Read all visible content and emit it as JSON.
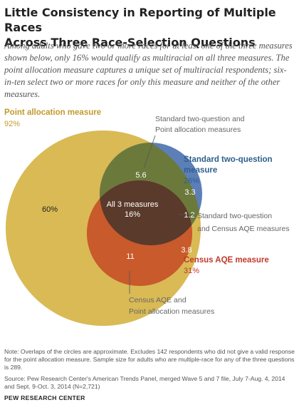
{
  "header": {
    "title_line1": "Little Consistency in Reporting of Multiple Races",
    "title_line2": "Across Three Race-Selection Questions",
    "subtitle": "Among adults who gave two or more races for at least one of the three measures shown below, only 16% would qualify as multiracial on all three measures. The point allocation measure captures a unique set of multiracial respondents; six-in-ten select two or more races for only this measure and neither of the other measures."
  },
  "chart_data": {
    "type": "venn",
    "sets": [
      {
        "key": "point",
        "name": "Point allocation measure",
        "value_label": "92%",
        "value": 92,
        "color": "#d9ba55",
        "text_color": "#c29a2c"
      },
      {
        "key": "standard",
        "name_line1": "Standard two-question",
        "name_line2": "measure",
        "value_label": "26%",
        "value": 26,
        "color": "#4b6fa6",
        "text_color": "#2e5f8e"
      },
      {
        "key": "aqe",
        "name": "Census AQE measure",
        "value_label": "31%",
        "value": 31,
        "color": "#d55a36",
        "text_color": "#c0392b"
      }
    ],
    "regions": [
      {
        "sets": [
          "point"
        ],
        "value": 60,
        "label": "60%"
      },
      {
        "sets": [
          "point",
          "standard"
        ],
        "value": 5.6,
        "label": "5.6"
      },
      {
        "sets": [
          "standard"
        ],
        "value": 3.3,
        "label": "3.3"
      },
      {
        "sets": [
          "point",
          "standard",
          "aqe"
        ],
        "value": 16,
        "label_line1": "All 3 measures",
        "label_line2": "16%"
      },
      {
        "sets": [
          "standard",
          "aqe"
        ],
        "value": 1.2,
        "label": "1.2"
      },
      {
        "sets": [
          "point",
          "aqe"
        ],
        "value": 11,
        "label": "11"
      },
      {
        "sets": [
          "aqe"
        ],
        "value": 3.8,
        "label": "3.8"
      }
    ],
    "annotations": {
      "standard_point": [
        "Standard two-question and",
        "Point allocation measures"
      ],
      "standard_aqe": [
        "Standard two-question",
        "and Census AQE measures"
      ],
      "aqe_point": [
        "Census AQE and",
        "Point allocation measures"
      ]
    }
  },
  "footer": {
    "note": "Note: Overlaps of the circles are approximate. Excludes 142 respondents who did not give a valid response for the point allocation measure. Sample size for adults who are multiple-race for any of the three questions is 289.",
    "source": "Source: Pew Research Center's American Trends Panel, merged Wave 5 and 7 file, July 7-Aug. 4, 2014 and Sept. 9-Oct. 3, 2014 (N=2,721)",
    "org": "PEW RESEARCH CENTER"
  }
}
